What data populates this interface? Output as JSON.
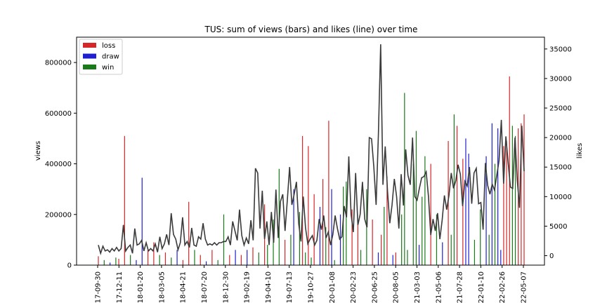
{
  "chart_data": {
    "type": "bar",
    "title": "TUS: sum of views (bars) and likes (line) over time",
    "ylabel": "views",
    "y2label": "likes",
    "ylim": [
      0,
      900000
    ],
    "y2lim": [
      -1600,
      37000
    ],
    "yticks": [
      0,
      200000,
      400000,
      600000,
      800000
    ],
    "y2ticks": [
      0,
      5000,
      10000,
      15000,
      20000,
      25000,
      30000,
      35000
    ],
    "xticks": [
      "17-09-30",
      "17-12-11",
      "18-01-20",
      "18-03-05",
      "18-04-21",
      "18-07-20",
      "18-12-30",
      "19-02-19",
      "19-04-10",
      "19-07-13",
      "19-10-27",
      "20-01-08",
      "20-02-23",
      "20-06-25",
      "20-08-05",
      "21-03-03",
      "21-05-06",
      "21-07-28",
      "22-01-10",
      "22-02-26",
      "22-05-07"
    ],
    "legend": {
      "placement": "top-left",
      "entries": [
        {
          "name": "loss",
          "color": "#d62728"
        },
        {
          "name": "draw",
          "color": "#1f1fd0"
        },
        {
          "name": "win",
          "color": "#1a7a1a"
        }
      ]
    },
    "line_color": "#3a3a3a",
    "colors": {
      "loss": "#d62728",
      "draw": "#1f1fd0",
      "win": "#1a7a1a"
    },
    "bars": [
      {
        "x": 0,
        "v": 35000,
        "r": "loss"
      },
      {
        "x": 2,
        "v": 20000,
        "r": "win"
      },
      {
        "x": 4,
        "v": 10000,
        "r": "draw"
      },
      {
        "x": 6,
        "v": 30000,
        "r": "win"
      },
      {
        "x": 7,
        "v": 25000,
        "r": "loss"
      },
      {
        "x": 9,
        "v": 510000,
        "r": "loss"
      },
      {
        "x": 11,
        "v": 40000,
        "r": "win"
      },
      {
        "x": 13,
        "v": 20000,
        "r": "draw"
      },
      {
        "x": 15,
        "v": 345000,
        "r": "draw"
      },
      {
        "x": 17,
        "v": 60000,
        "r": "loss"
      },
      {
        "x": 19,
        "v": 90000,
        "r": "loss"
      },
      {
        "x": 21,
        "v": 40000,
        "r": "win"
      },
      {
        "x": 23,
        "v": 50000,
        "r": "loss"
      },
      {
        "x": 25,
        "v": 30000,
        "r": "win"
      },
      {
        "x": 27,
        "v": 60000,
        "r": "draw"
      },
      {
        "x": 29,
        "v": 20000,
        "r": "loss"
      },
      {
        "x": 31,
        "v": 250000,
        "r": "loss"
      },
      {
        "x": 33,
        "v": 60000,
        "r": "win"
      },
      {
        "x": 35,
        "v": 40000,
        "r": "loss"
      },
      {
        "x": 37,
        "v": 15000,
        "r": "draw"
      },
      {
        "x": 39,
        "v": 60000,
        "r": "loss"
      },
      {
        "x": 41,
        "v": 20000,
        "r": "win"
      },
      {
        "x": 43,
        "v": 200000,
        "r": "win"
      },
      {
        "x": 45,
        "v": 40000,
        "r": "loss"
      },
      {
        "x": 47,
        "v": 60000,
        "r": "draw"
      },
      {
        "x": 49,
        "v": 40000,
        "r": "loss"
      },
      {
        "x": 51,
        "v": 60000,
        "r": "draw"
      },
      {
        "x": 53,
        "v": 70000,
        "r": "loss"
      },
      {
        "x": 55,
        "v": 50000,
        "r": "win"
      },
      {
        "x": 57,
        "v": 240000,
        "r": "loss"
      },
      {
        "x": 58,
        "v": 80000,
        "r": "win"
      },
      {
        "x": 60,
        "v": 180000,
        "r": "win"
      },
      {
        "x": 62,
        "v": 380000,
        "r": "win"
      },
      {
        "x": 64,
        "v": 100000,
        "r": "loss"
      },
      {
        "x": 66,
        "v": 120000,
        "r": "win"
      },
      {
        "x": 67,
        "v": 300000,
        "r": "draw"
      },
      {
        "x": 69,
        "v": 210000,
        "r": "win"
      },
      {
        "x": 70,
        "v": 510000,
        "r": "loss"
      },
      {
        "x": 71,
        "v": 50000,
        "r": "win"
      },
      {
        "x": 72,
        "v": 470000,
        "r": "loss"
      },
      {
        "x": 73,
        "v": 30000,
        "r": "win"
      },
      {
        "x": 74,
        "v": 280000,
        "r": "loss"
      },
      {
        "x": 76,
        "v": 230000,
        "r": "draw"
      },
      {
        "x": 77,
        "v": 340000,
        "r": "loss"
      },
      {
        "x": 78,
        "v": 150000,
        "r": "win"
      },
      {
        "x": 79,
        "v": 570000,
        "r": "loss"
      },
      {
        "x": 80,
        "v": 300000,
        "r": "draw"
      },
      {
        "x": 81,
        "v": 20000,
        "r": "win"
      },
      {
        "x": 83,
        "v": 200000,
        "r": "draw"
      },
      {
        "x": 84,
        "v": 310000,
        "r": "win"
      },
      {
        "x": 85,
        "v": 330000,
        "r": "win"
      },
      {
        "x": 87,
        "v": 220000,
        "r": "loss"
      },
      {
        "x": 89,
        "v": 160000,
        "r": "loss"
      },
      {
        "x": 90,
        "v": 60000,
        "r": "win"
      },
      {
        "x": 92,
        "v": 300000,
        "r": "win"
      },
      {
        "x": 94,
        "v": 180000,
        "r": "loss"
      },
      {
        "x": 96,
        "v": 50000,
        "r": "draw"
      },
      {
        "x": 97,
        "v": 120000,
        "r": "loss"
      },
      {
        "x": 98,
        "v": 230000,
        "r": "win"
      },
      {
        "x": 99,
        "v": 350000,
        "r": "loss"
      },
      {
        "x": 101,
        "v": 40000,
        "r": "draw"
      },
      {
        "x": 102,
        "v": 50000,
        "r": "loss"
      },
      {
        "x": 104,
        "v": 200000,
        "r": "win"
      },
      {
        "x": 105,
        "v": 680000,
        "r": "win"
      },
      {
        "x": 106,
        "v": 60000,
        "r": "win"
      },
      {
        "x": 108,
        "v": 400000,
        "r": "win"
      },
      {
        "x": 109,
        "v": 530000,
        "r": "win"
      },
      {
        "x": 110,
        "v": 80000,
        "r": "draw"
      },
      {
        "x": 111,
        "v": 270000,
        "r": "win"
      },
      {
        "x": 112,
        "v": 430000,
        "r": "win"
      },
      {
        "x": 114,
        "v": 400000,
        "r": "loss"
      },
      {
        "x": 116,
        "v": 200000,
        "r": "win"
      },
      {
        "x": 118,
        "v": 90000,
        "r": "draw"
      },
      {
        "x": 120,
        "v": 490000,
        "r": "loss"
      },
      {
        "x": 121,
        "v": 120000,
        "r": "win"
      },
      {
        "x": 122,
        "v": 595000,
        "r": "win"
      },
      {
        "x": 123,
        "v": 550000,
        "r": "loss"
      },
      {
        "x": 125,
        "v": 420000,
        "r": "loss"
      },
      {
        "x": 126,
        "v": 500000,
        "r": "draw"
      },
      {
        "x": 127,
        "v": 440000,
        "r": "draw"
      },
      {
        "x": 129,
        "v": 100000,
        "r": "win"
      },
      {
        "x": 131,
        "v": 220000,
        "r": "win"
      },
      {
        "x": 133,
        "v": 430000,
        "r": "draw"
      },
      {
        "x": 134,
        "v": 120000,
        "r": "win"
      },
      {
        "x": 135,
        "v": 560000,
        "r": "draw"
      },
      {
        "x": 136,
        "v": 400000,
        "r": "win"
      },
      {
        "x": 137,
        "v": 540000,
        "r": "draw"
      },
      {
        "x": 138,
        "v": 60000,
        "r": "draw"
      },
      {
        "x": 139,
        "v": 470000,
        "r": "loss"
      },
      {
        "x": 140,
        "v": 490000,
        "r": "loss"
      },
      {
        "x": 141,
        "v": 745000,
        "r": "loss"
      },
      {
        "x": 142,
        "v": 550000,
        "r": "win"
      },
      {
        "x": 143,
        "v": 510000,
        "r": "win"
      },
      {
        "x": 144,
        "v": 540000,
        "r": "loss"
      },
      {
        "x": 145,
        "v": 560000,
        "r": "loss"
      },
      {
        "x": 146,
        "v": 595000,
        "r": "loss"
      }
    ],
    "likes": [
      1800,
      400,
      1600,
      800,
      1000,
      600,
      1200,
      800,
      1400,
      800,
      1200,
      5200,
      800,
      1400,
      1800,
      400,
      4600,
      1800,
      2000,
      2600,
      800,
      2200,
      800,
      1200,
      800,
      2000,
      600,
      3200,
      1200,
      2000,
      3600,
      1800,
      7200,
      3600,
      2800,
      1000,
      2200,
      6500,
      1800,
      2400,
      1400,
      4700,
      1800,
      1600,
      3200,
      2800,
      5500,
      2800,
      1800,
      2000,
      1800,
      2200,
      1800,
      2200,
      2200,
      2400,
      2400,
      3200,
      1800,
      5800,
      4200,
      2600,
      7800,
      3400,
      1800,
      3000,
      2000,
      6000,
      2600,
      14800,
      14000,
      4600,
      11000,
      2800,
      5800,
      1800,
      7400,
      2200,
      11200,
      3000,
      9200,
      10400,
      4200,
      9400,
      15000,
      8600,
      10400,
      12500,
      5400,
      2400,
      10000,
      4700,
      2000,
      2800,
      3400,
      1800,
      2600,
      6200,
      4400,
      6800,
      3000,
      4000,
      1800,
      3600,
      6800,
      4600,
      2800,
      3200,
      8400,
      6500,
      16800,
      7000,
      4000,
      14000,
      5200,
      7000,
      12500,
      6200,
      4800,
      20000,
      19800,
      15000,
      8600,
      20500,
      35800,
      12000,
      18500,
      11000,
      5500,
      8600,
      13000,
      10000,
      4600,
      13800,
      8500,
      18000,
      13600,
      12000,
      20000,
      10000,
      9400,
      11400,
      13200,
      13400,
      14200,
      10000,
      3500,
      6200,
      4200,
      7200,
      2800,
      6000,
      10200,
      7800,
      10200,
      14000,
      11400,
      12700,
      15400,
      13800,
      8400,
      12600,
      11800,
      15000,
      8800,
      14000,
      14800,
      8800,
      9000,
      4400,
      15700,
      11900,
      10400,
      12100,
      11100,
      13600,
      16100,
      23000,
      12200,
      20200,
      15700,
      11600,
      11400,
      20000,
      12800,
      8100,
      22000,
      14300
    ]
  }
}
